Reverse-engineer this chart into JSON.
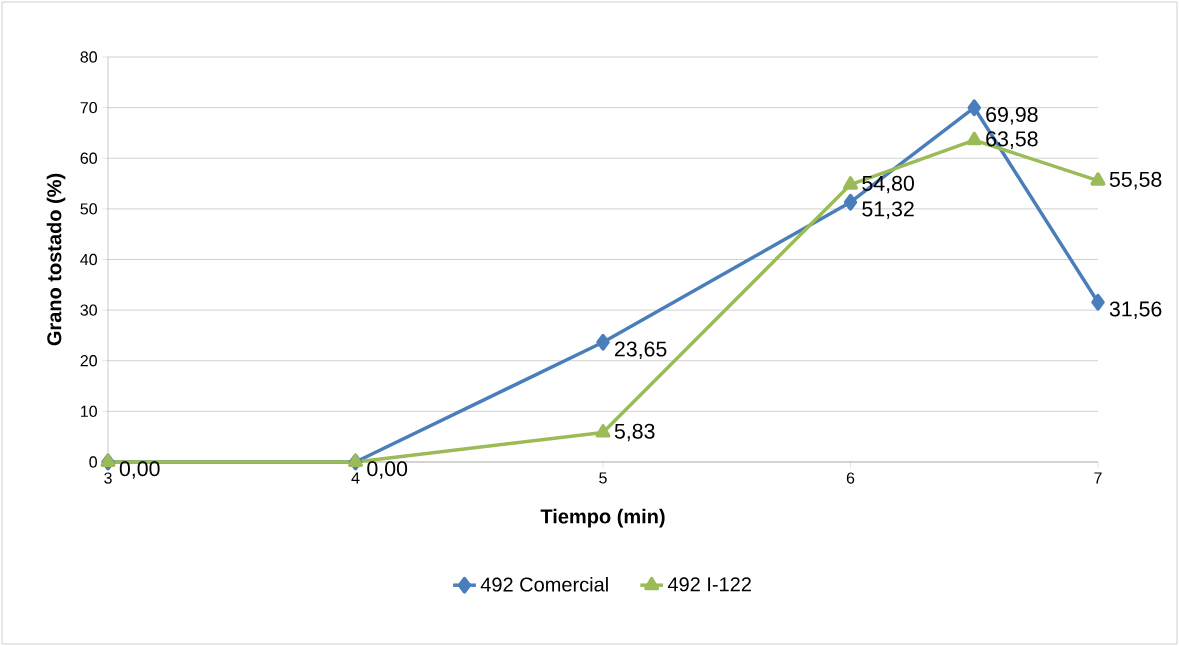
{
  "chart_data": {
    "type": "line",
    "xlabel": "Tiempo (min)",
    "ylabel": "Grano tostado (%)",
    "x": [
      3,
      4,
      5,
      6,
      6.5,
      7
    ],
    "series": [
      {
        "name": "492 Comercial",
        "color": "#4a7ebb",
        "marker": "diamond",
        "values": [
          0,
          0,
          23.65,
          51.32,
          69.98,
          31.56
        ],
        "value_labels": [
          "0,00",
          "0,00",
          "23,65",
          "51,32",
          "69,98",
          "31,56"
        ]
      },
      {
        "name": "492 I-122",
        "color": "#9bbb59",
        "marker": "triangle",
        "values": [
          0,
          0,
          5.83,
          54.8,
          63.58,
          55.58
        ],
        "value_labels": [
          null,
          null,
          "5,83",
          "54,80",
          "63,58",
          "55,58"
        ]
      }
    ],
    "xlim": [
      3,
      7
    ],
    "xticks": [
      3,
      4,
      5,
      6,
      7
    ],
    "ylim": [
      0,
      80
    ],
    "yticks": [
      0,
      10,
      20,
      30,
      40,
      50,
      60,
      70,
      80
    ],
    "grid": "y",
    "legend": "bottom",
    "line_style": "solid"
  }
}
